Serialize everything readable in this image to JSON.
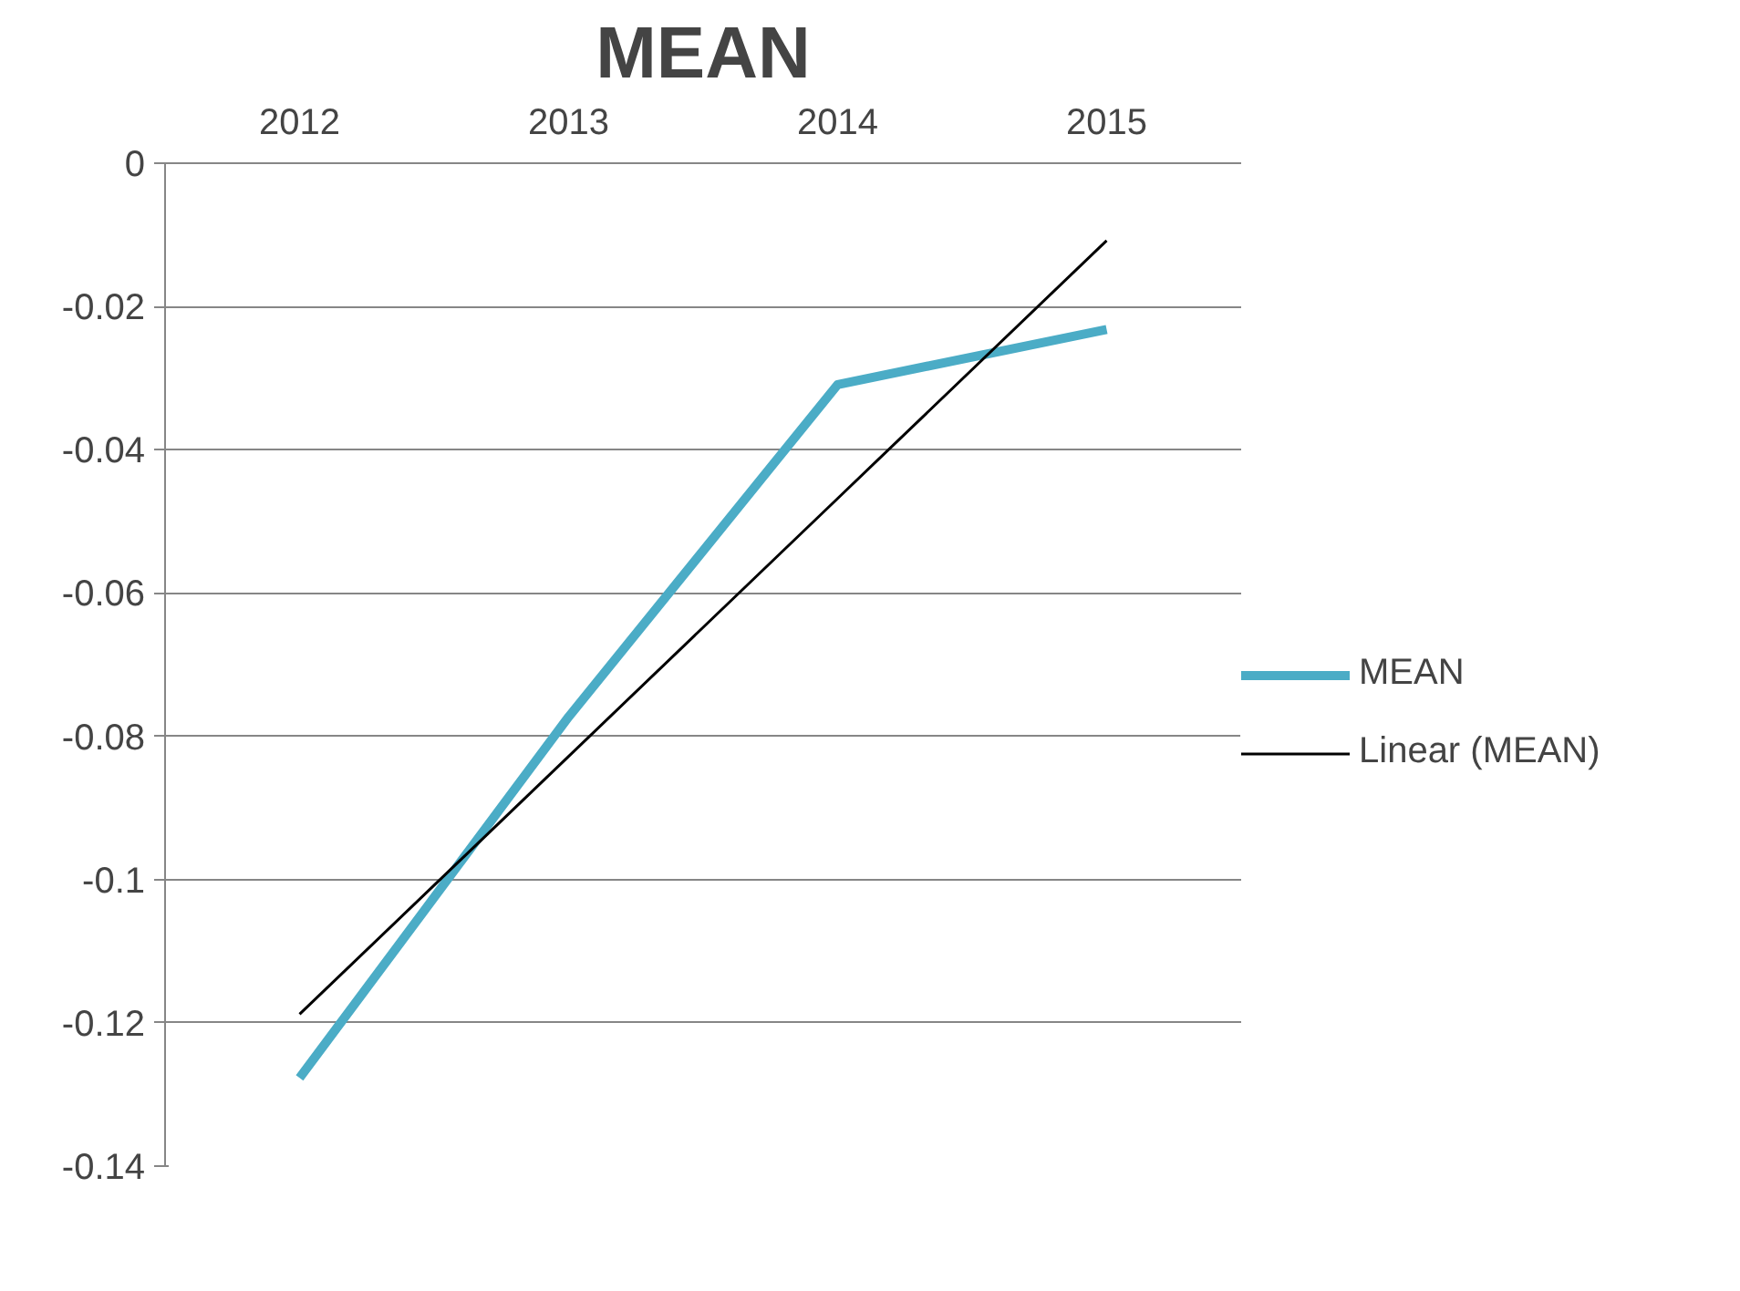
{
  "chart_data": {
    "type": "line",
    "title": "MEAN",
    "categories": [
      "2012",
      "2013",
      "2014",
      "2015"
    ],
    "series": [
      {
        "name": "MEAN",
        "color": "#4bacc6",
        "values": [
          -0.1277,
          -0.0773,
          -0.0309,
          -0.0232
        ]
      },
      {
        "name": "Linear (MEAN)",
        "type": "line",
        "color": "#000000",
        "values": [
          -0.1188,
          -0.0828,
          -0.0468,
          -0.0108
        ]
      }
    ],
    "ylim": [
      -0.14,
      0
    ],
    "yticks": [
      0,
      -0.02,
      -0.04,
      -0.06,
      -0.08,
      -0.1,
      -0.12,
      -0.14
    ],
    "grid": "y",
    "legend": "right",
    "marker": "none",
    "line_style": "solid"
  }
}
